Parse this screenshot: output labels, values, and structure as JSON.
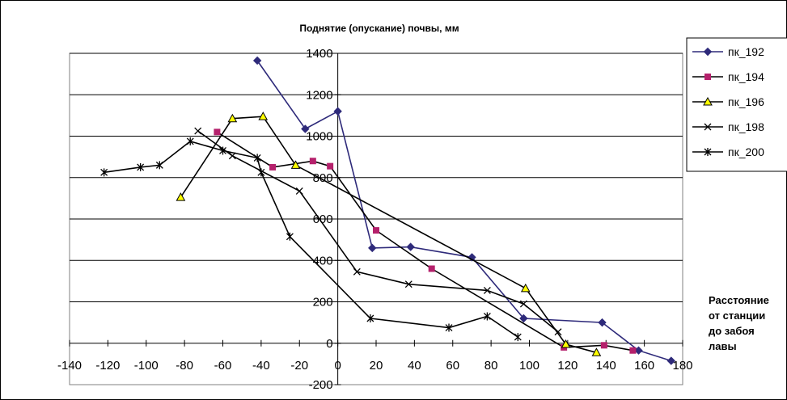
{
  "chart_data": {
    "type": "line",
    "title": "Поднятие (опускание) почвы, мм",
    "xlabel": [
      "Расстояние",
      "от станции",
      "до забоя",
      "лавы"
    ],
    "ylabel": "",
    "xlim": [
      -140,
      180
    ],
    "ylim": [
      -200,
      1400
    ],
    "x_ticks": [
      "-140",
      "-120",
      "-100",
      "-80",
      "-60",
      "-40",
      "-20",
      "0",
      "20",
      "40",
      "60",
      "80",
      "100",
      "120",
      "140",
      "160",
      "180"
    ],
    "y_ticks": [
      "1400",
      "1200",
      "1000",
      "800",
      "600",
      "400",
      "200",
      "0",
      "-200"
    ],
    "grid": "horizontal",
    "legend": "top-right",
    "series": [
      {
        "name": "пк_192",
        "marker": "diamond",
        "color": "#2e2a7a",
        "marker_fill": "#2e2a7a",
        "points": [
          [
            -42,
            1365
          ],
          [
            -17,
            1035
          ],
          [
            0,
            1120
          ],
          [
            18,
            460
          ],
          [
            38,
            465
          ],
          [
            70,
            415
          ],
          [
            97,
            120
          ],
          [
            138,
            100
          ],
          [
            157,
            -35
          ],
          [
            174,
            -85
          ]
        ]
      },
      {
        "name": "пк_194",
        "marker": "square",
        "color": "#000000",
        "marker_fill": "#b5216c",
        "points": [
          [
            -63,
            1020
          ],
          [
            -34,
            850
          ],
          [
            -13,
            880
          ],
          [
            -4,
            855
          ],
          [
            20,
            545
          ],
          [
            49,
            360
          ],
          [
            118,
            -20
          ],
          [
            139,
            -10
          ],
          [
            154,
            -35
          ]
        ]
      },
      {
        "name": "пк_196",
        "marker": "triangle",
        "color": "#000000",
        "marker_fill": "#ffff00",
        "points": [
          [
            -82,
            705
          ],
          [
            -55,
            1085
          ],
          [
            -39,
            1095
          ],
          [
            -22,
            860
          ],
          [
            98,
            265
          ],
          [
            119,
            -5
          ],
          [
            135,
            -45
          ]
        ]
      },
      {
        "name": "пк_198",
        "marker": "x",
        "color": "#000000",
        "marker_fill": "#000000",
        "points": [
          [
            -73,
            1025
          ],
          [
            -55,
            905
          ],
          [
            -20,
            735
          ],
          [
            10,
            345
          ],
          [
            37,
            285
          ],
          [
            78,
            255
          ],
          [
            97,
            190
          ],
          [
            115,
            55
          ]
        ]
      },
      {
        "name": "пк_200",
        "marker": "star",
        "color": "#000000",
        "marker_fill": "#000000",
        "points": [
          [
            -122,
            825
          ],
          [
            -103,
            850
          ],
          [
            -93,
            860
          ],
          [
            -77,
            975
          ],
          [
            -60,
            930
          ],
          [
            -42,
            895
          ],
          [
            -40,
            825
          ],
          [
            -25,
            515
          ],
          [
            17,
            120
          ],
          [
            58,
            75
          ],
          [
            78,
            130
          ],
          [
            94,
            30
          ]
        ]
      }
    ]
  }
}
